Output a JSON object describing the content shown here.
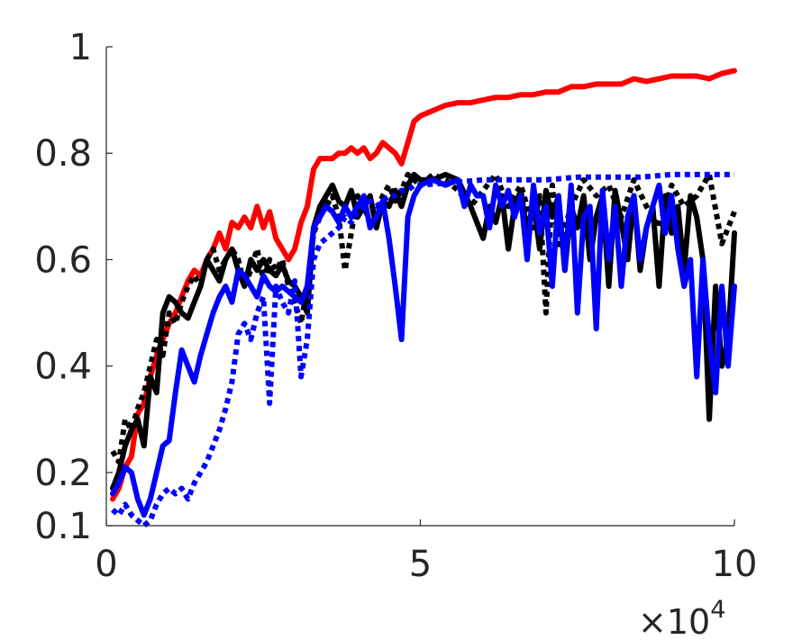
{
  "chart_data": {
    "type": "line",
    "title": "",
    "xlabel": "",
    "ylabel": "",
    "xlim": [
      0,
      100000
    ],
    "ylim": [
      0.1,
      1
    ],
    "grid": false,
    "x_exponent": {
      "base": "×10",
      "power": "4"
    },
    "x_ticks": [
      {
        "value": 0,
        "label": "0"
      },
      {
        "value": 50000,
        "label": "5"
      },
      {
        "value": 100000,
        "label": "10"
      }
    ],
    "y_ticks": [
      {
        "value": 0.1,
        "label": "0.1"
      },
      {
        "value": 0.2,
        "label": "0.2"
      },
      {
        "value": 0.4,
        "label": "0.4"
      },
      {
        "value": 0.6,
        "label": "0.6"
      },
      {
        "value": 0.8,
        "label": "0.8"
      },
      {
        "value": 1,
        "label": "1"
      }
    ],
    "series": [
      {
        "color": "#ff0000",
        "style": "solid",
        "x": [
          1000,
          2000,
          3000,
          4000,
          5000,
          6000,
          7000,
          8000,
          9000,
          10000,
          11000,
          12000,
          13000,
          14000,
          15000,
          16000,
          17000,
          18000,
          19000,
          20000,
          21000,
          22000,
          23000,
          24000,
          25000,
          26000,
          27000,
          28000,
          29000,
          30000,
          31000,
          32000,
          33000,
          34000,
          35000,
          36000,
          37000,
          38000,
          39000,
          40000,
          41000,
          42000,
          43000,
          44000,
          45000,
          46000,
          47000,
          48000,
          49000,
          50000,
          52000,
          54000,
          56000,
          58000,
          60000,
          62000,
          64000,
          66000,
          68000,
          70000,
          72000,
          74000,
          76000,
          78000,
          80000,
          82000,
          84000,
          86000,
          88000,
          90000,
          92000,
          94000,
          96000,
          98000,
          100000
        ],
        "y": [
          0.15,
          0.17,
          0.21,
          0.23,
          0.31,
          0.33,
          0.38,
          0.42,
          0.45,
          0.48,
          0.5,
          0.53,
          0.56,
          0.58,
          0.57,
          0.6,
          0.62,
          0.65,
          0.62,
          0.67,
          0.66,
          0.68,
          0.66,
          0.7,
          0.66,
          0.69,
          0.64,
          0.62,
          0.6,
          0.62,
          0.67,
          0.7,
          0.77,
          0.79,
          0.79,
          0.79,
          0.8,
          0.8,
          0.81,
          0.8,
          0.81,
          0.79,
          0.8,
          0.82,
          0.81,
          0.8,
          0.78,
          0.82,
          0.86,
          0.87,
          0.88,
          0.89,
          0.895,
          0.895,
          0.9,
          0.905,
          0.905,
          0.91,
          0.91,
          0.915,
          0.915,
          0.925,
          0.925,
          0.93,
          0.93,
          0.93,
          0.94,
          0.935,
          0.94,
          0.945,
          0.945,
          0.945,
          0.94,
          0.95,
          0.955
        ]
      },
      {
        "color": "#000000",
        "style": "solid",
        "x": [
          1000,
          2000,
          3000,
          4000,
          5000,
          6000,
          7000,
          8000,
          9000,
          10000,
          11000,
          12000,
          13000,
          14000,
          15000,
          16000,
          17000,
          18000,
          19000,
          20000,
          21000,
          22000,
          23000,
          24000,
          25000,
          26000,
          27000,
          28000,
          29000,
          30000,
          31000,
          32000,
          33000,
          34000,
          35000,
          36000,
          37000,
          38000,
          39000,
          40000,
          41000,
          42000,
          43000,
          44000,
          45000,
          46000,
          47000,
          48000,
          49000,
          50000,
          52000,
          54000,
          56000,
          58000,
          60000,
          61000,
          62000,
          63000,
          64000,
          65000,
          66000,
          67000,
          68000,
          69000,
          70000,
          71000,
          72000,
          73000,
          74000,
          75000,
          76000,
          77000,
          78000,
          79000,
          80000,
          81000,
          82000,
          83000,
          84000,
          85000,
          86000,
          87000,
          88000,
          89000,
          90000,
          91000,
          92000,
          93000,
          94000,
          95000,
          96000,
          97000,
          98000,
          99000,
          100000
        ],
        "y": [
          0.17,
          0.2,
          0.25,
          0.28,
          0.3,
          0.25,
          0.38,
          0.35,
          0.5,
          0.53,
          0.52,
          0.5,
          0.49,
          0.52,
          0.55,
          0.6,
          0.58,
          0.56,
          0.6,
          0.62,
          0.58,
          0.55,
          0.6,
          0.58,
          0.6,
          0.58,
          0.57,
          0.59,
          0.56,
          0.55,
          0.53,
          0.5,
          0.66,
          0.7,
          0.72,
          0.74,
          0.71,
          0.7,
          0.73,
          0.68,
          0.7,
          0.72,
          0.66,
          0.71,
          0.7,
          0.73,
          0.7,
          0.74,
          0.76,
          0.75,
          0.75,
          0.76,
          0.75,
          0.7,
          0.64,
          0.7,
          0.67,
          0.72,
          0.62,
          0.7,
          0.73,
          0.65,
          0.71,
          0.62,
          0.73,
          0.68,
          0.72,
          0.58,
          0.7,
          0.66,
          0.72,
          0.6,
          0.68,
          0.72,
          0.55,
          0.73,
          0.67,
          0.6,
          0.72,
          0.58,
          0.66,
          0.7,
          0.55,
          0.72,
          0.65,
          0.7,
          0.58,
          0.72,
          0.68,
          0.6,
          0.3,
          0.55,
          0.4,
          0.45,
          0.65
        ]
      },
      {
        "color": "#000000",
        "style": "dotted",
        "x": [
          1000,
          2000,
          3000,
          4000,
          5000,
          6000,
          7000,
          8000,
          9000,
          10000,
          11000,
          12000,
          13000,
          14000,
          15000,
          16000,
          17000,
          18000,
          19000,
          20000,
          21000,
          22000,
          23000,
          24000,
          25000,
          26000,
          27000,
          28000,
          29000,
          30000,
          31000,
          32000,
          33000,
          34000,
          35000,
          36000,
          37000,
          38000,
          39000,
          40000,
          41000,
          42000,
          43000,
          44000,
          45000,
          46000,
          47000,
          48000,
          49000,
          50000,
          52000,
          54000,
          56000,
          58000,
          60000,
          62000,
          64000,
          66000,
          68000,
          69000,
          70000,
          71000,
          72000,
          74000,
          76000,
          78000,
          80000,
          82000,
          84000,
          86000,
          88000,
          90000,
          92000,
          94000,
          96000,
          98000,
          100000
        ],
        "y": [
          0.24,
          0.22,
          0.3,
          0.28,
          0.32,
          0.35,
          0.4,
          0.45,
          0.42,
          0.5,
          0.48,
          0.52,
          0.55,
          0.57,
          0.55,
          0.6,
          0.62,
          0.58,
          0.6,
          0.62,
          0.6,
          0.55,
          0.58,
          0.62,
          0.56,
          0.6,
          0.58,
          0.6,
          0.55,
          0.52,
          0.48,
          0.55,
          0.65,
          0.68,
          0.7,
          0.72,
          0.68,
          0.58,
          0.65,
          0.72,
          0.7,
          0.67,
          0.69,
          0.72,
          0.74,
          0.71,
          0.73,
          0.76,
          0.75,
          0.74,
          0.76,
          0.75,
          0.73,
          0.7,
          0.73,
          0.76,
          0.7,
          0.74,
          0.66,
          0.72,
          0.5,
          0.74,
          0.62,
          0.7,
          0.75,
          0.72,
          0.74,
          0.68,
          0.75,
          0.7,
          0.66,
          0.74,
          0.7,
          0.72,
          0.76,
          0.63,
          0.69
        ]
      },
      {
        "color": "#0000ff",
        "style": "solid",
        "x": [
          1000,
          2000,
          3000,
          4000,
          5000,
          6000,
          7000,
          8000,
          9000,
          10000,
          11000,
          12000,
          13000,
          14000,
          15000,
          16000,
          17000,
          18000,
          19000,
          20000,
          21000,
          22000,
          23000,
          24000,
          25000,
          26000,
          27000,
          28000,
          29000,
          30000,
          31000,
          32000,
          33000,
          34000,
          35000,
          36000,
          37000,
          38000,
          39000,
          40000,
          41000,
          42000,
          43000,
          44000,
          45000,
          46000,
          47000,
          48000,
          49000,
          50000,
          52000,
          54000,
          56000,
          57000,
          58000,
          59000,
          60000,
          61000,
          62000,
          63000,
          64000,
          65000,
          66000,
          67000,
          68000,
          69000,
          70000,
          71000,
          72000,
          73000,
          74000,
          75000,
          76000,
          77000,
          78000,
          79000,
          80000,
          81000,
          82000,
          83000,
          84000,
          85000,
          86000,
          87000,
          88000,
          89000,
          90000,
          91000,
          92000,
          93000,
          94000,
          95000,
          96000,
          97000,
          98000,
          99000,
          100000
        ],
        "y": [
          0.16,
          0.18,
          0.21,
          0.2,
          0.15,
          0.12,
          0.15,
          0.2,
          0.25,
          0.26,
          0.35,
          0.43,
          0.4,
          0.37,
          0.42,
          0.46,
          0.5,
          0.53,
          0.55,
          0.52,
          0.58,
          0.57,
          0.55,
          0.53,
          0.57,
          0.55,
          0.54,
          0.55,
          0.54,
          0.53,
          0.52,
          0.55,
          0.66,
          0.68,
          0.7,
          0.69,
          0.67,
          0.7,
          0.68,
          0.7,
          0.72,
          0.66,
          0.68,
          0.71,
          0.64,
          0.55,
          0.45,
          0.68,
          0.72,
          0.74,
          0.75,
          0.74,
          0.75,
          0.7,
          0.74,
          0.72,
          0.72,
          0.66,
          0.74,
          0.7,
          0.73,
          0.68,
          0.72,
          0.6,
          0.74,
          0.65,
          0.7,
          0.55,
          0.72,
          0.58,
          0.74,
          0.5,
          0.68,
          0.7,
          0.47,
          0.73,
          0.6,
          0.7,
          0.55,
          0.68,
          0.72,
          0.6,
          0.66,
          0.7,
          0.74,
          0.65,
          0.72,
          0.62,
          0.55,
          0.6,
          0.38,
          0.6,
          0.45,
          0.35,
          0.55,
          0.4,
          0.55
        ]
      },
      {
        "color": "#0000ff",
        "style": "dotted",
        "x": [
          1000,
          2000,
          3000,
          4000,
          5000,
          6000,
          7000,
          8000,
          9000,
          10000,
          11000,
          12000,
          13000,
          14000,
          15000,
          16000,
          17000,
          18000,
          19000,
          20000,
          21000,
          22000,
          23000,
          24000,
          25000,
          26000,
          27000,
          28000,
          29000,
          30000,
          31000,
          32000,
          33000,
          34000,
          35000,
          36000,
          37000,
          38000,
          39000,
          40000,
          41000,
          42000,
          43000,
          44000,
          45000,
          46000,
          47000,
          48000,
          49000,
          50000,
          55000,
          60000,
          65000,
          70000,
          75000,
          80000,
          85000,
          90000,
          95000,
          100000
        ],
        "y": [
          0.13,
          0.12,
          0.14,
          0.12,
          0.11,
          0.1,
          0.11,
          0.14,
          0.16,
          0.17,
          0.16,
          0.17,
          0.15,
          0.18,
          0.2,
          0.22,
          0.25,
          0.28,
          0.32,
          0.37,
          0.46,
          0.48,
          0.45,
          0.5,
          0.53,
          0.33,
          0.55,
          0.52,
          0.5,
          0.56,
          0.38,
          0.45,
          0.6,
          0.63,
          0.64,
          0.65,
          0.66,
          0.68,
          0.67,
          0.69,
          0.7,
          0.71,
          0.7,
          0.71,
          0.72,
          0.72,
          0.73,
          0.73,
          0.74,
          0.74,
          0.745,
          0.75,
          0.75,
          0.75,
          0.755,
          0.755,
          0.755,
          0.76,
          0.76,
          0.76
        ]
      }
    ]
  }
}
